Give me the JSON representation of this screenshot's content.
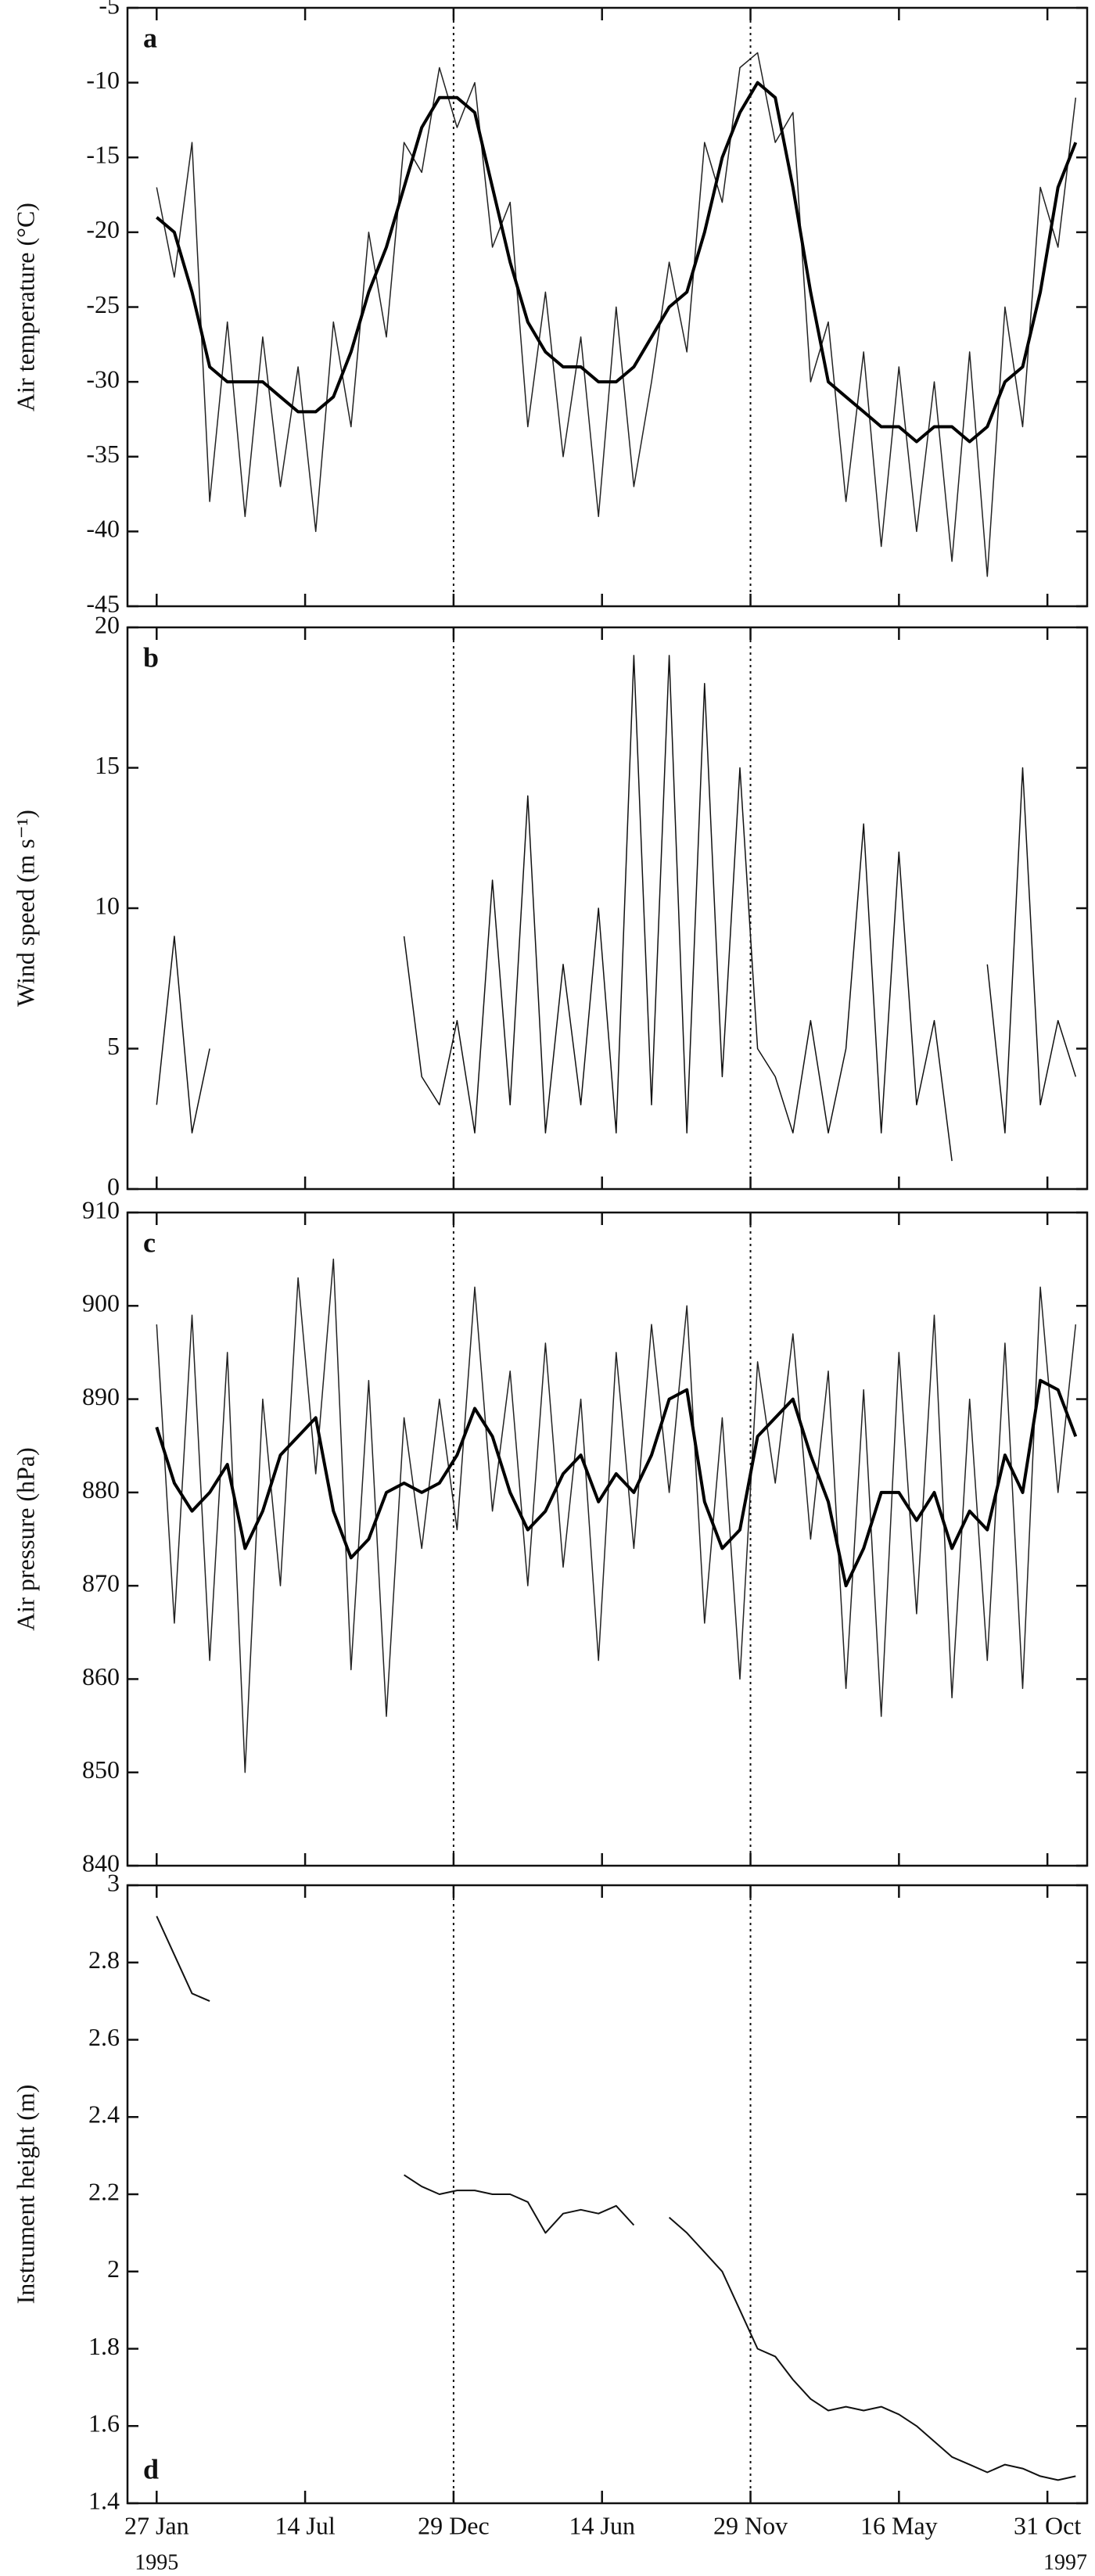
{
  "chart_data": [
    {
      "type": "line",
      "label": "a",
      "y_label": "Air temperature (°C)",
      "xlim": [
        -33,
        1053
      ],
      "xticks": [
        0,
        168,
        336,
        504,
        672,
        840,
        1008
      ],
      "reference_lines": [
        336,
        672
      ],
      "ylim": [
        -45,
        -5
      ],
      "yticks": [
        -45,
        -40,
        -35,
        -30,
        -25,
        -20,
        -15,
        -10,
        -5
      ],
      "x": [
        0,
        20,
        40,
        60,
        80,
        100,
        120,
        140,
        160,
        180,
        200,
        220,
        240,
        260,
        280,
        300,
        320,
        340,
        360,
        380,
        400,
        420,
        440,
        460,
        480,
        500,
        520,
        540,
        560,
        580,
        600,
        620,
        640,
        660,
        680,
        700,
        720,
        740,
        760,
        780,
        800,
        820,
        840,
        860,
        880,
        900,
        920,
        940,
        960,
        980,
        1000,
        1020,
        1040
      ],
      "series": [
        {
          "color": "#222",
          "width": 1.5,
          "values": [
            -17,
            -23,
            -14,
            -38,
            -26,
            -39,
            -27,
            -37,
            -29,
            -40,
            -26,
            -33,
            -20,
            -27,
            -14,
            -16,
            -9,
            -13,
            -10,
            -21,
            -18,
            -33,
            -24,
            -35,
            -27,
            -39,
            -25,
            -37,
            -30,
            -22,
            -28,
            -14,
            -18,
            -9,
            -8,
            -14,
            -12,
            -30,
            -26,
            -38,
            -28,
            -41,
            -29,
            -40,
            -30,
            -42,
            -28,
            -43,
            -25,
            -33,
            -17,
            -21,
            -11
          ]
        },
        {
          "color": "#000",
          "width": 4,
          "values": [
            -19,
            -20,
            -24,
            -29,
            -30,
            -30,
            -30,
            -31,
            -32,
            -32,
            -31,
            -28,
            -24,
            -21,
            -17,
            -13,
            -11,
            -11,
            -12,
            -17,
            -22,
            -26,
            -28,
            -29,
            -29,
            -30,
            -30,
            -29,
            -27,
            -25,
            -24,
            -20,
            -15,
            -12,
            -10,
            -11,
            -17,
            -24,
            -30,
            -31,
            -32,
            -33,
            -33,
            -34,
            -33,
            -33,
            -34,
            -33,
            -30,
            -29,
            -24,
            -17,
            -14
          ]
        }
      ]
    },
    {
      "type": "line",
      "label": "b",
      "y_label": "Wind speed (m s⁻¹)",
      "xlim": [
        -33,
        1053
      ],
      "xticks": [
        0,
        168,
        336,
        504,
        672,
        840,
        1008
      ],
      "reference_lines": [
        336,
        672
      ],
      "ylim": [
        0,
        20
      ],
      "yticks": [
        0,
        5,
        10,
        15,
        20
      ],
      "x": [
        0,
        20,
        40,
        60,
        80,
        100,
        120,
        140,
        160,
        180,
        200,
        220,
        240,
        260,
        280,
        300,
        320,
        340,
        360,
        380,
        400,
        420,
        440,
        460,
        480,
        500,
        520,
        540,
        560,
        580,
        600,
        620,
        640,
        660,
        680,
        700,
        720,
        740,
        760,
        780,
        800,
        820,
        840,
        860,
        880,
        900,
        920,
        940,
        960,
        980,
        1000,
        1020,
        1040
      ],
      "series": [
        {
          "color": "#111",
          "width": 1.5,
          "values": [
            3,
            9,
            2,
            5,
            null,
            null,
            null,
            null,
            null,
            null,
            null,
            null,
            null,
            null,
            9,
            4,
            3,
            6,
            2,
            11,
            3,
            14,
            2,
            8,
            3,
            10,
            2,
            19,
            3,
            19,
            2,
            18,
            4,
            15,
            5,
            4,
            2,
            6,
            2,
            5,
            13,
            2,
            12,
            3,
            6,
            1,
            null,
            8,
            2,
            15,
            3,
            6,
            4
          ]
        }
      ]
    },
    {
      "type": "line",
      "label": "c",
      "y_label": "Air pressure (hPa)",
      "xlim": [
        -33,
        1053
      ],
      "xticks": [
        0,
        168,
        336,
        504,
        672,
        840,
        1008
      ],
      "reference_lines": [
        336,
        672
      ],
      "ylim": [
        840,
        910
      ],
      "yticks": [
        840,
        850,
        860,
        870,
        880,
        890,
        900,
        910
      ],
      "x": [
        0,
        20,
        40,
        60,
        80,
        100,
        120,
        140,
        160,
        180,
        200,
        220,
        240,
        260,
        280,
        300,
        320,
        340,
        360,
        380,
        400,
        420,
        440,
        460,
        480,
        500,
        520,
        540,
        560,
        580,
        600,
        620,
        640,
        660,
        680,
        700,
        720,
        740,
        760,
        780,
        800,
        820,
        840,
        860,
        880,
        900,
        920,
        940,
        960,
        980,
        1000,
        1020,
        1040
      ],
      "series": [
        {
          "color": "#222",
          "width": 1.5,
          "values": [
            898,
            866,
            899,
            862,
            895,
            850,
            890,
            870,
            903,
            882,
            905,
            861,
            892,
            856,
            888,
            874,
            890,
            876,
            902,
            878,
            893,
            870,
            896,
            872,
            890,
            862,
            895,
            874,
            898,
            880,
            900,
            866,
            888,
            860,
            894,
            881,
            897,
            875,
            893,
            859,
            891,
            856,
            895,
            867,
            899,
            858,
            890,
            862,
            896,
            859,
            902,
            880,
            898
          ]
        },
        {
          "color": "#000",
          "width": 4,
          "values": [
            887,
            881,
            878,
            880,
            883,
            874,
            878,
            884,
            886,
            888,
            878,
            873,
            875,
            880,
            881,
            880,
            881,
            884,
            889,
            886,
            880,
            876,
            878,
            882,
            884,
            879,
            882,
            880,
            884,
            890,
            891,
            879,
            874,
            876,
            886,
            888,
            890,
            884,
            879,
            870,
            874,
            880,
            880,
            877,
            880,
            874,
            878,
            876,
            884,
            880,
            892,
            891,
            886
          ]
        }
      ]
    },
    {
      "type": "line",
      "label": "d",
      "y_label": "Instrument height (m)",
      "xlim": [
        -33,
        1053
      ],
      "xticks": [
        {
          "value": 0,
          "label": "27 Jan"
        },
        {
          "value": 168,
          "label": "14 Jul"
        },
        {
          "value": 336,
          "label": "29 Dec"
        },
        {
          "value": 504,
          "label": "14 Jun"
        },
        {
          "value": 672,
          "label": "29 Nov"
        },
        {
          "value": 840,
          "label": "16 May"
        },
        {
          "value": 1008,
          "label": "31 Oct"
        }
      ],
      "annotations": [
        "1995",
        "1997"
      ],
      "reference_lines": [
        336,
        672
      ],
      "ylim": [
        1.4,
        3
      ],
      "yticks": [
        1.4,
        1.6,
        1.8,
        2,
        2.2,
        2.4,
        2.6,
        2.8,
        3
      ],
      "x": [
        0,
        20,
        40,
        60,
        80,
        100,
        120,
        140,
        160,
        180,
        200,
        220,
        240,
        260,
        280,
        300,
        320,
        340,
        360,
        380,
        400,
        420,
        440,
        460,
        480,
        500,
        520,
        540,
        560,
        580,
        600,
        620,
        640,
        660,
        680,
        700,
        720,
        740,
        760,
        780,
        800,
        820,
        840,
        860,
        880,
        900,
        920,
        940,
        960,
        980,
        1000,
        1020,
        1040
      ],
      "series": [
        {
          "color": "#111",
          "width": 2,
          "values": [
            2.92,
            2.82,
            2.72,
            2.7,
            null,
            null,
            null,
            null,
            null,
            null,
            null,
            null,
            null,
            null,
            2.25,
            2.22,
            2.2,
            2.21,
            2.21,
            2.2,
            2.2,
            2.18,
            2.1,
            2.15,
            2.16,
            2.15,
            2.17,
            2.12,
            null,
            2.14,
            2.1,
            2.05,
            2,
            1.9,
            1.8,
            1.78,
            1.72,
            1.67,
            1.64,
            1.65,
            1.64,
            1.65,
            1.63,
            1.6,
            1.56,
            1.52,
            1.5,
            1.48,
            1.5,
            1.49,
            1.47,
            1.46,
            1.47
          ]
        }
      ]
    }
  ]
}
